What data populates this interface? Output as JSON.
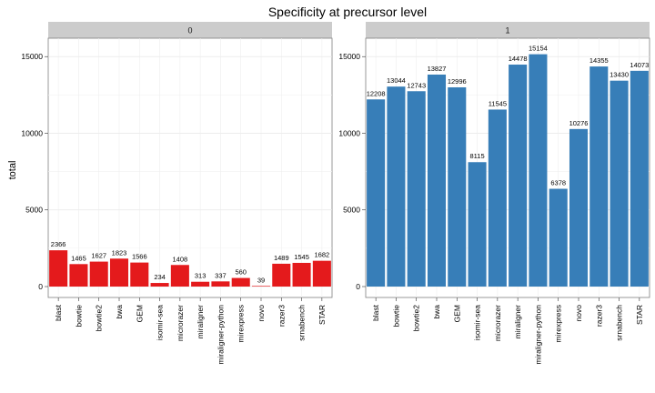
{
  "chart_data": {
    "type": "bar",
    "title": "Specificity at precursor level",
    "xlabel": "",
    "ylabel": "total",
    "ylim": [
      0,
      16200
    ],
    "yticks": [
      0,
      5000,
      10000,
      15000
    ],
    "grid": true,
    "categories": [
      "blast",
      "bowtie",
      "bowtie2",
      "bwa",
      "GEM",
      "isomir-sea",
      "microrazer",
      "miraligner",
      "miraligner-python",
      "mirexpress",
      "novo",
      "razer3",
      "srnabench",
      "STAR"
    ],
    "panels": [
      {
        "label": "0",
        "color": "#e41a1c",
        "values": [
          2366,
          1465,
          1627,
          1823,
          1566,
          234,
          1408,
          313,
          337,
          560,
          39,
          1489,
          1545,
          1682
        ]
      },
      {
        "label": "1",
        "color": "#377eb8",
        "values": [
          12208,
          13044,
          12743,
          13827,
          12996,
          8115,
          11545,
          14478,
          15154,
          6378,
          10276,
          14355,
          13430,
          14073
        ]
      }
    ]
  }
}
